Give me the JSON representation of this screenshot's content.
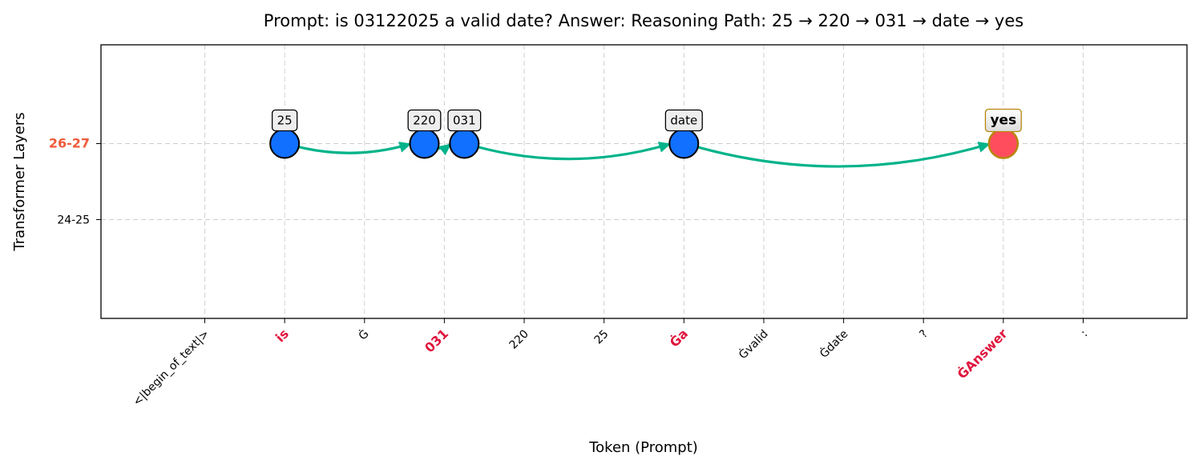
{
  "chart_data": {
    "type": "scatter",
    "title": "Prompt: is 03122025 a valid date? Answer: Reasoning Path: 25 → 220 → 031 → date → yes",
    "xlabel": "Token (Prompt)",
    "ylabel": "Transformer Layers",
    "x_categories": [
      "<|begin_of_text|>",
      "is",
      "Ġ",
      "031",
      "220",
      "25",
      "Ġa",
      "Ġvalid",
      "Ġdate",
      "?",
      "ĠAnswer",
      ":"
    ],
    "highlighted_x": [
      "is",
      "031",
      "Ġa",
      "ĠAnswer"
    ],
    "y_ticks": [
      {
        "label": "24-25",
        "value": 0
      },
      {
        "label": "26-27",
        "value": 1,
        "highlight": true
      }
    ],
    "ylim": [
      -1.3,
      2.3
    ],
    "xlim": [
      -1.3,
      12.3
    ],
    "grid": true,
    "nodes": [
      {
        "label": "25",
        "x": 1.0,
        "y": 1,
        "color": "#1170ff",
        "final": false
      },
      {
        "label": "220",
        "x": 2.75,
        "y": 1,
        "color": "#1170ff",
        "final": false
      },
      {
        "label": "031",
        "x": 3.25,
        "y": 1,
        "color": "#1170ff",
        "final": false
      },
      {
        "label": "date",
        "x": 6.0,
        "y": 1,
        "color": "#1170ff",
        "final": false
      },
      {
        "label": "yes",
        "x": 10.0,
        "y": 1,
        "color": "#ff4d5e",
        "final": true
      }
    ],
    "edges": [
      {
        "from": 0,
        "to": 1
      },
      {
        "from": 1,
        "to": 2
      },
      {
        "from": 2,
        "to": 3
      },
      {
        "from": 3,
        "to": 4
      }
    ],
    "edge_color": "#00b38a"
  }
}
